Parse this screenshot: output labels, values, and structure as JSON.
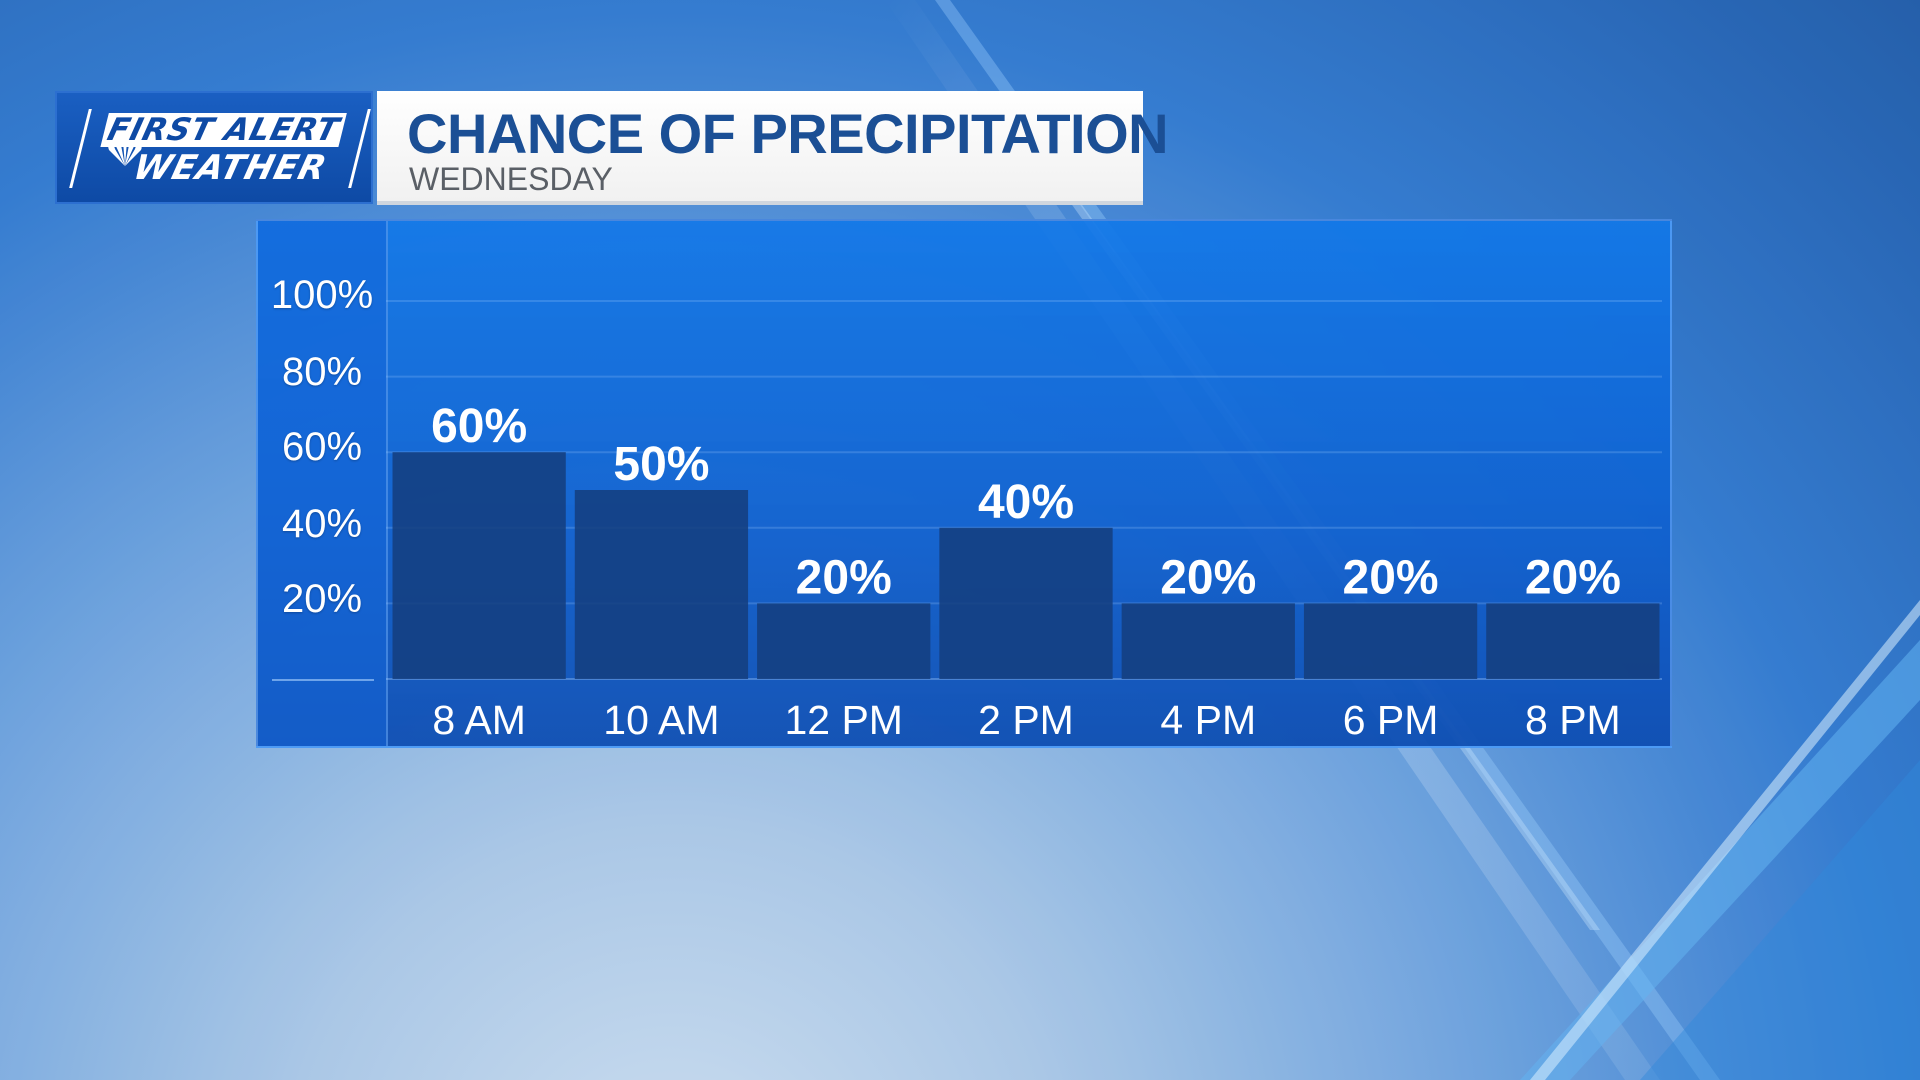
{
  "logo": {
    "line1": "FIRST ALERT",
    "line2": "WEATHER",
    "icon": "peacock-icon"
  },
  "header": {
    "title": "CHANCE OF PRECIPITATION",
    "subtitle": "WEDNESDAY"
  },
  "colors": {
    "panel": "#1270e0",
    "bar": "#143f80",
    "title": "#1b4f95",
    "logo": "#0e4aa5"
  },
  "chart_data": {
    "type": "bar",
    "title": "CHANCE OF PRECIPITATION",
    "subtitle": "WEDNESDAY",
    "categories": [
      "8 AM",
      "10 AM",
      "12 PM",
      "2 PM",
      "4 PM",
      "6 PM",
      "8 PM"
    ],
    "values": [
      60,
      50,
      20,
      40,
      20,
      20,
      20
    ],
    "value_labels": [
      "60%",
      "50%",
      "20%",
      "40%",
      "20%",
      "20%",
      "20%"
    ],
    "yticks": [
      "100%",
      "80%",
      "60%",
      "40%",
      "20%"
    ],
    "ytick_values": [
      100,
      80,
      60,
      40,
      20
    ],
    "ylim": [
      0,
      100
    ],
    "xlabel": "",
    "ylabel": "",
    "grid": true,
    "legend": "none"
  }
}
